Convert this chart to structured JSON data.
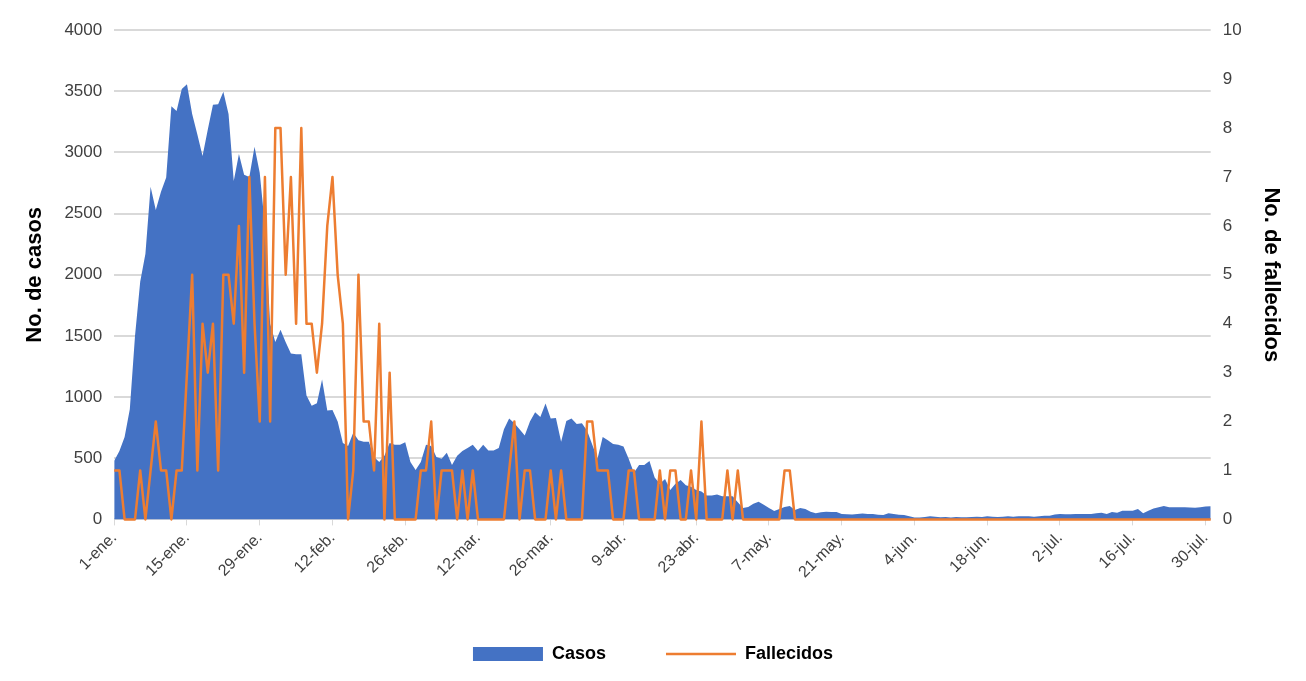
{
  "chart_data": {
    "type": "area",
    "xlabel": null,
    "ylabel": "No. de casos",
    "y2label": "No. de fallecidos",
    "categories": [
      "1-ene.",
      null,
      null,
      null,
      null,
      null,
      null,
      null,
      null,
      null,
      null,
      null,
      null,
      null,
      "15-ene.",
      null,
      null,
      null,
      null,
      null,
      null,
      null,
      null,
      null,
      null,
      null,
      null,
      null,
      "29-ene.",
      null,
      null,
      null,
      null,
      null,
      null,
      null,
      null,
      null,
      null,
      null,
      null,
      null,
      "12-feb.",
      null,
      null,
      null,
      null,
      null,
      null,
      null,
      null,
      null,
      null,
      null,
      null,
      null,
      "26-feb.",
      null,
      null,
      null,
      null,
      null,
      null,
      null,
      null,
      null,
      null,
      null,
      null,
      null,
      "12-mar.",
      null,
      null,
      null,
      null,
      null,
      null,
      null,
      null,
      null,
      null,
      null,
      null,
      null,
      "26-mar.",
      null,
      null,
      null,
      null,
      null,
      null,
      null,
      null,
      null,
      null,
      null,
      null,
      null,
      "9-abr.",
      null,
      null,
      null,
      null,
      null,
      null,
      null,
      null,
      null,
      null,
      null,
      null,
      null,
      "23-abr.",
      null,
      null,
      null,
      null,
      null,
      null,
      null,
      null,
      null,
      null,
      null,
      null,
      null,
      "7-may.",
      null,
      null,
      null,
      null,
      null,
      null,
      null,
      null,
      null,
      null,
      null,
      null,
      null,
      "21-may.",
      null,
      null,
      null,
      null,
      null,
      null,
      null,
      null,
      null,
      null,
      null,
      null,
      null,
      "4-jun.",
      null,
      null,
      null,
      null,
      null,
      null,
      null,
      null,
      null,
      null,
      null,
      null,
      null,
      "18-jun.",
      null,
      null,
      null,
      null,
      null,
      null,
      null,
      null,
      null,
      null,
      null,
      null,
      null,
      "2-jul.",
      null,
      null,
      null,
      null,
      null,
      null,
      null,
      null,
      null,
      null,
      null,
      null,
      null,
      "16-jul.",
      null,
      null,
      null,
      null,
      null,
      null,
      null,
      null,
      null,
      null,
      null,
      null,
      null,
      "30-jul.",
      null
    ],
    "series": [
      {
        "name": "Casos",
        "type": "area",
        "color": "#4472c4",
        "values": [
          480,
          560,
          673,
          900,
          1500,
          1943,
          2171,
          2720,
          2530,
          2680,
          2796,
          3378,
          3340,
          3520,
          3558,
          3314,
          3147,
          2971,
          3185,
          3390,
          3395,
          3497,
          3314,
          2766,
          2987,
          2819,
          2800,
          3048,
          2834,
          2400,
          1600,
          1450,
          1550,
          1448,
          1356,
          1350,
          1350,
          1013,
          930,
          950,
          1143,
          891,
          895,
          800,
          625,
          600,
          709,
          648,
          635,
          635,
          510,
          470,
          520,
          625,
          610,
          610,
          630,
          470,
          404,
          470,
          610,
          600,
          510,
          495,
          545,
          445,
          520,
          559,
          584,
          610,
          559,
          610,
          564,
          564,
          584,
          737,
          825,
          787,
          737,
          686,
          800,
          876,
          838,
          947,
          825,
          830,
          635,
          805,
          825,
          780,
          787,
          724,
          610,
          495,
          673,
          648,
          617,
          610,
          597,
          495,
          381,
          444,
          444,
          477,
          343,
          292,
          330,
          241,
          292,
          322,
          279,
          267,
          241,
          229,
          196,
          196,
          203,
          190,
          190,
          190,
          140,
          94,
          102,
          127,
          145,
          119,
          94,
          68,
          84,
          102,
          110,
          76,
          94,
          84,
          63,
          51,
          58,
          63,
          60,
          60,
          45,
          42,
          40,
          45,
          48,
          45,
          45,
          38,
          35,
          50,
          45,
          38,
          35,
          25,
          15,
          15,
          20,
          25,
          22,
          18,
          20,
          15,
          20,
          18,
          18,
          20,
          22,
          20,
          25,
          22,
          20,
          22,
          25,
          22,
          25,
          25,
          25,
          22,
          25,
          30,
          30,
          40,
          45,
          42,
          42,
          45,
          45,
          45,
          45,
          50,
          55,
          45,
          60,
          55,
          70,
          70,
          70,
          85,
          50,
          70,
          90,
          100,
          109,
          100,
          100,
          100,
          100,
          98,
          95,
          100,
          105,
          108
        ]
      },
      {
        "name": "Fallecidos",
        "type": "line",
        "axis": "y2",
        "color": "#ed7d31",
        "values": [
          1,
          1,
          0,
          0,
          0,
          1,
          0,
          1,
          2,
          1,
          1,
          0,
          1,
          1,
          3,
          5,
          1,
          4,
          3,
          4,
          1,
          5,
          5,
          4,
          6,
          3,
          7,
          4,
          2,
          7,
          2,
          8,
          8,
          5,
          7,
          4,
          8,
          4,
          4,
          3,
          4,
          6,
          7,
          5,
          4,
          0,
          1,
          5,
          2,
          2,
          1,
          4,
          0,
          3,
          0,
          0,
          0,
          0,
          0,
          1,
          1,
          2,
          0,
          1,
          1,
          1,
          0,
          1,
          0,
          1,
          0,
          0,
          0,
          0,
          0,
          0,
          1,
          2,
          0,
          1,
          1,
          0,
          0,
          0,
          1,
          0,
          1,
          0,
          0,
          0,
          0,
          2,
          2,
          1,
          1,
          1,
          0,
          0,
          0,
          1,
          1,
          0,
          0,
          0,
          0,
          1,
          0,
          1,
          1,
          0,
          0,
          1,
          0,
          2,
          0,
          0,
          0,
          0,
          1,
          0,
          1,
          0,
          0,
          0,
          0,
          0,
          0,
          0,
          0,
          1,
          1,
          0,
          0,
          0,
          0,
          0,
          0,
          0,
          0,
          0,
          0,
          0,
          0,
          0,
          0,
          0,
          0,
          0,
          0,
          0,
          0,
          0,
          0,
          0,
          0,
          0,
          0,
          0,
          0,
          0,
          0,
          0,
          0,
          0,
          0,
          0,
          0,
          0,
          0,
          0,
          0,
          0,
          0,
          0,
          0,
          0,
          0,
          0,
          0,
          0,
          0,
          0,
          0,
          0,
          0,
          0,
          0,
          0,
          0,
          0,
          0,
          0,
          0,
          0,
          0,
          0,
          0,
          0,
          0,
          0,
          0,
          0,
          0,
          0,
          0,
          0,
          0,
          0,
          0,
          0,
          0,
          0
        ]
      }
    ],
    "ylim": [
      0,
      4000
    ],
    "yticks": [
      0,
      500,
      1000,
      1500,
      2000,
      2500,
      3000,
      3500,
      4000
    ],
    "y2lim": [
      0,
      10
    ],
    "y2ticks": [
      0,
      1,
      2,
      3,
      4,
      5,
      6,
      7,
      8,
      9,
      10
    ],
    "grid": "y",
    "legend": "bottom"
  }
}
